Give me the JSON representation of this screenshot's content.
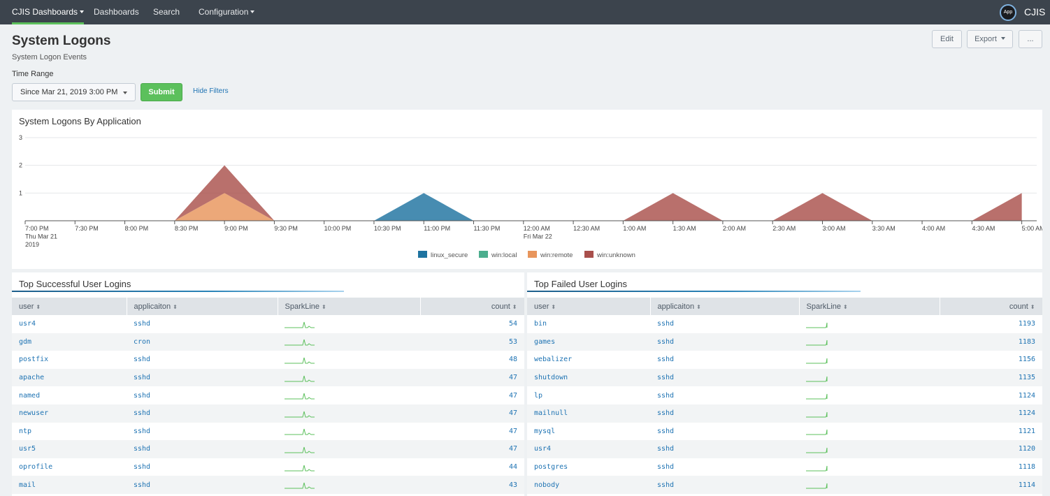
{
  "nav": {
    "items": [
      {
        "label": "CJIS Dashboards",
        "dropdown": true,
        "active": true
      },
      {
        "label": "Dashboards",
        "dropdown": false
      },
      {
        "label": "Search",
        "dropdown": false
      },
      {
        "label": "Configuration",
        "dropdown": true
      }
    ],
    "app_badge": "App",
    "app_name": "CJIS"
  },
  "header": {
    "title": "System Logons",
    "description": "System Logon Events",
    "edit_label": "Edit",
    "export_label": "Export",
    "more_label": "..."
  },
  "filters": {
    "time_range_label": "Time Range",
    "time_range_value": "Since Mar 21, 2019 3:00 PM",
    "submit_label": "Submit",
    "hide_filters_label": "Hide Filters"
  },
  "chart_data": {
    "type": "area",
    "title": "System Logons By Application",
    "stacked": true,
    "ylim": [
      0,
      3
    ],
    "y_ticks": [
      "1",
      "2",
      "3"
    ],
    "x": [
      "19:00",
      "19:30",
      "20:00",
      "20:30",
      "21:00",
      "21:30",
      "22:00",
      "22:30",
      "23:00",
      "23:30",
      "00:00",
      "00:30",
      "01:00",
      "01:30",
      "02:00",
      "02:30",
      "03:00",
      "03:30",
      "04:00",
      "04:30",
      "05:00"
    ],
    "x_tick_labels": [
      [
        "7:00 PM",
        "Thu Mar 21",
        "2019"
      ],
      [
        "7:30 PM"
      ],
      [
        "8:00 PM"
      ],
      [
        "8:30 PM"
      ],
      [
        "9:00 PM"
      ],
      [
        "9:30 PM"
      ],
      [
        "10:00 PM"
      ],
      [
        "10:30 PM"
      ],
      [
        "11:00 PM"
      ],
      [
        "11:30 PM"
      ],
      [
        "12:00 AM",
        "Fri Mar 22"
      ],
      [
        "12:30 AM"
      ],
      [
        "1:00 AM"
      ],
      [
        "1:30 AM"
      ],
      [
        "2:00 AM"
      ],
      [
        "2:30 AM"
      ],
      [
        "3:00 AM"
      ],
      [
        "3:30 AM"
      ],
      [
        "4:00 AM"
      ],
      [
        "4:30 AM"
      ],
      [
        "5:00 AM"
      ]
    ],
    "series": [
      {
        "name": "linux_secure",
        "color": "#1e73a0",
        "values": [
          0,
          0,
          0,
          0,
          0,
          0,
          0,
          0,
          1,
          0,
          0,
          0,
          0,
          0,
          0,
          0,
          0,
          0,
          0,
          0,
          0
        ]
      },
      {
        "name": "win:local",
        "color": "#4cae8e",
        "values": [
          0,
          0,
          0,
          0,
          0,
          0,
          0,
          0,
          0,
          0,
          0,
          0,
          0,
          0,
          0,
          0,
          0,
          0,
          0,
          0,
          0
        ]
      },
      {
        "name": "win:remote",
        "color": "#e8955c",
        "values": [
          0,
          0,
          0,
          0,
          1,
          0,
          0,
          0,
          0,
          0,
          0,
          0,
          0,
          0,
          0,
          0,
          0,
          0,
          0,
          0,
          0
        ]
      },
      {
        "name": "win:unknown",
        "color": "#a9504c",
        "values": [
          0,
          0,
          0,
          0,
          1,
          0,
          0,
          0,
          0,
          0,
          0,
          0,
          0,
          1,
          0,
          0,
          1,
          0,
          0,
          0,
          1
        ]
      }
    ],
    "legend_position": "bottom",
    "grid": true
  },
  "success_table": {
    "title": "Top Successful User Logins",
    "columns": [
      "user",
      "applicaiton",
      "SparkLine",
      "count"
    ],
    "rows": [
      {
        "user": "usr4",
        "app": "sshd",
        "count": "54"
      },
      {
        "user": "gdm",
        "app": "cron",
        "count": "53"
      },
      {
        "user": "postfix",
        "app": "sshd",
        "count": "48"
      },
      {
        "user": "apache",
        "app": "sshd",
        "count": "47"
      },
      {
        "user": "named",
        "app": "sshd",
        "count": "47"
      },
      {
        "user": "newuser",
        "app": "sshd",
        "count": "47"
      },
      {
        "user": "ntp",
        "app": "sshd",
        "count": "47"
      },
      {
        "user": "usr5",
        "app": "sshd",
        "count": "47"
      },
      {
        "user": "oprofile",
        "app": "sshd",
        "count": "44"
      },
      {
        "user": "mail",
        "app": "sshd",
        "count": "43"
      }
    ]
  },
  "failed_table": {
    "title": "Top Failed User Logins",
    "columns": [
      "user",
      "applicaiton",
      "SparkLine",
      "count"
    ],
    "rows": [
      {
        "user": "bin",
        "app": "sshd",
        "count": "1193"
      },
      {
        "user": "games",
        "app": "sshd",
        "count": "1183"
      },
      {
        "user": "webalizer",
        "app": "sshd",
        "count": "1156"
      },
      {
        "user": "shutdown",
        "app": "sshd",
        "count": "1135"
      },
      {
        "user": "lp",
        "app": "sshd",
        "count": "1124"
      },
      {
        "user": "mailnull",
        "app": "sshd",
        "count": "1124"
      },
      {
        "user": "mysql",
        "app": "sshd",
        "count": "1121"
      },
      {
        "user": "usr4",
        "app": "sshd",
        "count": "1120"
      },
      {
        "user": "postgres",
        "app": "sshd",
        "count": "1118"
      },
      {
        "user": "nobody",
        "app": "sshd",
        "count": "1114"
      }
    ]
  },
  "colors": {
    "nav_bg": "#3c444d",
    "accent_green": "#5cc05c",
    "link_blue": "#1e73b3",
    "sparkline": "#5cc05c"
  }
}
